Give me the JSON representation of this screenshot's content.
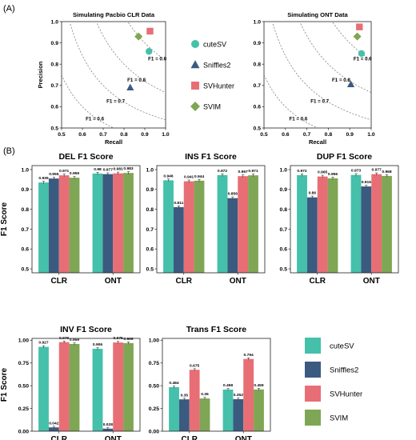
{
  "panels": {
    "a": "(A)",
    "b": "(B)"
  },
  "colors": {
    "cutesv": "#45c0aa",
    "sniffles2": "#3b5a80",
    "svhunter": "#e86e76",
    "svim": "#7fa654"
  },
  "legend_a": [
    {
      "name": "cuteSV",
      "shape": "circle",
      "color": "#45c0aa"
    },
    {
      "name": "Sniffles2",
      "shape": "triangle",
      "color": "#3b5a80"
    },
    {
      "name": "SVHunter",
      "shape": "square",
      "color": "#e86e76"
    },
    {
      "name": "SVIM",
      "shape": "diamond",
      "color": "#7fa654"
    }
  ],
  "legend_b": [
    {
      "name": "cuteSV",
      "color": "#45c0aa"
    },
    {
      "name": "Sniffles2",
      "color": "#3b5a80"
    },
    {
      "name": "SVHunter",
      "color": "#e86e76"
    },
    {
      "name": "SVIM",
      "color": "#7fa654"
    }
  ],
  "chart_data": [
    {
      "type": "scatter",
      "title": "Simulating Pacbio CLR Data",
      "xlabel": "Recall",
      "ylabel": "Precision",
      "xlim": [
        0.5,
        1.0
      ],
      "ylim": [
        0.5,
        1.0
      ],
      "xticks": [
        "0.5",
        "0.6",
        "0.7",
        "0.8",
        "0.9",
        "1.0"
      ],
      "yticks": [
        "0.5",
        "0.6",
        "0.7",
        "0.8",
        "0.9",
        "1.0"
      ],
      "f1_curves": [
        0.6,
        0.7,
        0.8,
        0.9
      ],
      "f1_labels": [
        "F1 = 0.6",
        "F1 = 0.7",
        "F1 = 0.8",
        "F1 = 0.9"
      ],
      "points": [
        {
          "name": "cuteSV",
          "x": 0.92,
          "y": 0.86
        },
        {
          "name": "Sniffles2",
          "x": 0.83,
          "y": 0.69
        },
        {
          "name": "SVHunter",
          "x": 0.925,
          "y": 0.955
        },
        {
          "name": "SVIM",
          "x": 0.87,
          "y": 0.93
        }
      ]
    },
    {
      "type": "scatter",
      "title": "Simulating ONT Data",
      "xlabel": "Recall",
      "ylabel": "",
      "xlim": [
        0.5,
        1.0
      ],
      "ylim": [
        0.5,
        1.0
      ],
      "xticks": [
        "0.5",
        "0.6",
        "0.7",
        "0.8",
        "0.9",
        "1.0"
      ],
      "yticks": [
        "0.5",
        "0.6",
        "0.7",
        "0.8",
        "0.9",
        "1.0"
      ],
      "f1_curves": [
        0.6,
        0.7,
        0.8,
        0.9
      ],
      "f1_labels": [
        "F1 = 0.6",
        "F1 = 0.7",
        "F1 = 0.8",
        "F1 = 0.9"
      ],
      "points": [
        {
          "name": "cuteSV",
          "x": 0.955,
          "y": 0.85
        },
        {
          "name": "Sniffles2",
          "x": 0.905,
          "y": 0.705
        },
        {
          "name": "SVHunter",
          "x": 0.945,
          "y": 0.975
        },
        {
          "name": "SVIM",
          "x": 0.935,
          "y": 0.93
        }
      ]
    },
    {
      "type": "bar",
      "title": "DEL F1 Score",
      "ylabel": "F1 Score",
      "categories": [
        "CLR",
        "ONT"
      ],
      "ylim": [
        0.48,
        1.02
      ],
      "yticks": [
        "0.5",
        "0.6",
        "0.7",
        "0.8",
        "0.9",
        "1.0"
      ],
      "series": [
        {
          "name": "cuteSV",
          "values": [
            0.935,
            0.98
          ],
          "labels": [
            "0.935",
            "0.98"
          ]
        },
        {
          "name": "Sniffles2",
          "values": [
            0.955,
            0.977
          ],
          "labels": [
            "0.955",
            "0.977"
          ]
        },
        {
          "name": "SVHunter",
          "values": [
            0.971,
            0.981
          ],
          "labels": [
            "0.971",
            "0.981"
          ]
        },
        {
          "name": "SVIM",
          "values": [
            0.959,
            0.983
          ],
          "labels": [
            "0.959",
            "0.983"
          ]
        }
      ]
    },
    {
      "type": "bar",
      "title": "INS F1 Score",
      "ylabel": "",
      "categories": [
        "CLR",
        "ONT"
      ],
      "ylim": [
        0.48,
        1.02
      ],
      "yticks": [
        "0.5",
        "0.6",
        "0.7",
        "0.8",
        "0.9",
        "1.0"
      ],
      "series": [
        {
          "name": "cuteSV",
          "values": [
            0.946,
            0.972
          ],
          "labels": [
            "0.946",
            "0.972"
          ]
        },
        {
          "name": "Sniffles2",
          "values": [
            0.811,
            0.856
          ],
          "labels": [
            "0.811",
            "0.856"
          ]
        },
        {
          "name": "SVHunter",
          "values": [
            0.941,
            0.967
          ],
          "labels": [
            "0.941",
            "0.967"
          ]
        },
        {
          "name": "SVIM",
          "values": [
            0.944,
            0.971
          ],
          "labels": [
            "0.944",
            "0.971"
          ]
        }
      ]
    },
    {
      "type": "bar",
      "title": "DUP F1 Score",
      "ylabel": "",
      "categories": [
        "CLR",
        "ONT"
      ],
      "ylim": [
        0.48,
        1.02
      ],
      "yticks": [
        "0.5",
        "0.6",
        "0.7",
        "0.8",
        "0.9",
        "1.0"
      ],
      "series": [
        {
          "name": "cuteSV",
          "values": [
            0.972,
            0.973
          ],
          "labels": [
            "0.972",
            "0.973"
          ]
        },
        {
          "name": "Sniffles2",
          "values": [
            0.86,
            0.915
          ],
          "labels": [
            "0.86",
            "0.915"
          ]
        },
        {
          "name": "SVHunter",
          "values": [
            0.965,
            0.977
          ],
          "labels": [
            "0.965",
            "0.977"
          ]
        },
        {
          "name": "SVIM",
          "values": [
            0.956,
            0.968
          ],
          "labels": [
            "0.956",
            "0.968"
          ]
        }
      ]
    },
    {
      "type": "bar",
      "title": "INV F1 Score",
      "ylabel": "F1 Score",
      "categories": [
        "CLR",
        "ONT"
      ],
      "ylim": [
        0.0,
        1.02
      ],
      "yticks": [
        "0.00",
        "0.25",
        "0.50",
        "0.75",
        "1.00"
      ],
      "series": [
        {
          "name": "cuteSV",
          "values": [
            0.927,
            0.906
          ],
          "labels": [
            "0.927",
            "0.906"
          ]
        },
        {
          "name": "Sniffles2",
          "values": [
            0.042,
            0.028
          ],
          "labels": [
            "0.042",
            "0.028"
          ]
        },
        {
          "name": "SVHunter",
          "values": [
            0.979,
            0.975
          ],
          "labels": [
            "0.979",
            "0.975"
          ]
        },
        {
          "name": "SVIM",
          "values": [
            0.959,
            0.969
          ],
          "labels": [
            "0.959",
            "0.969"
          ]
        }
      ]
    },
    {
      "type": "bar",
      "title": "Trans F1 Score",
      "ylabel": "",
      "categories": [
        "CLR",
        "ONT"
      ],
      "ylim": [
        0.0,
        1.02
      ],
      "yticks": [
        "0.00",
        "0.25",
        "0.50",
        "0.75",
        "1.00"
      ],
      "series": [
        {
          "name": "cuteSV",
          "values": [
            0.484,
            0.458
          ],
          "labels": [
            "0.484",
            "0.458"
          ]
        },
        {
          "name": "Sniffles2",
          "values": [
            0.35,
            0.352
          ],
          "labels": [
            "0.35",
            "0.352"
          ]
        },
        {
          "name": "SVHunter",
          "values": [
            0.675,
            0.794
          ],
          "labels": [
            "0.675",
            "0.794"
          ]
        },
        {
          "name": "SVIM",
          "values": [
            0.36,
            0.459
          ],
          "labels": [
            "0.36",
            "0.459"
          ]
        }
      ]
    }
  ]
}
